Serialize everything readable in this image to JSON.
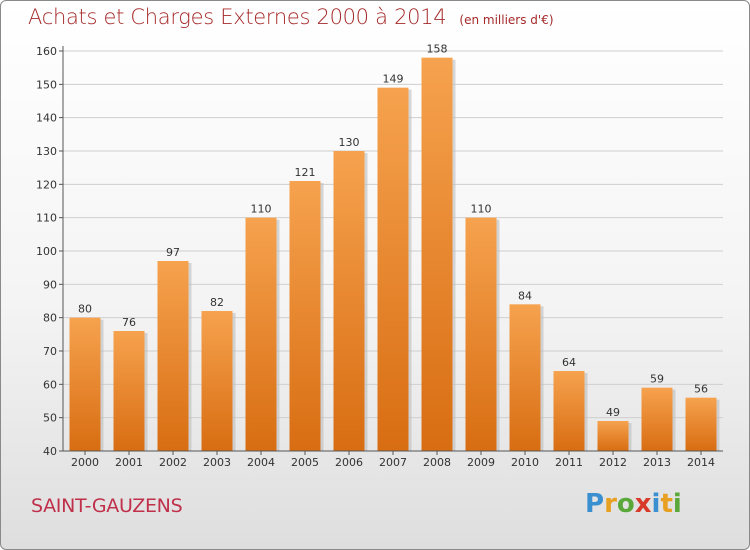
{
  "header": {
    "title": "Achats et Charges Externes 2000 à 2014",
    "subtitle": "(en milliers d'€)"
  },
  "footer": {
    "commune": "SAINT-GAUZENS",
    "logo_letters": [
      {
        "ch": "P",
        "color": "#3a8fd0"
      },
      {
        "ch": "r",
        "color": "#e8a020"
      },
      {
        "ch": "o",
        "color": "#5aa83a"
      },
      {
        "ch": "x",
        "color": "#d83a2a"
      },
      {
        "ch": "i",
        "color": "#3a8fd0"
      },
      {
        "ch": "t",
        "color": "#e8a020"
      },
      {
        "ch": "i",
        "color": "#5aa83a"
      }
    ]
  },
  "chart_data": {
    "type": "bar",
    "categories": [
      "2000",
      "2001",
      "2002",
      "2003",
      "2004",
      "2005",
      "2006",
      "2007",
      "2008",
      "2009",
      "2010",
      "2011",
      "2012",
      "2013",
      "2014"
    ],
    "values": [
      80,
      76,
      97,
      82,
      110,
      121,
      130,
      149,
      158,
      110,
      84,
      64,
      49,
      59,
      56
    ],
    "title": "Achats et Charges Externes 2000 à 2014",
    "subtitle": "(en milliers d'€)",
    "xlabel": "",
    "ylabel": "",
    "ylim": [
      40,
      160
    ],
    "yticks": [
      40,
      50,
      60,
      70,
      80,
      90,
      100,
      110,
      120,
      130,
      140,
      150,
      160
    ],
    "grid": true,
    "bar_color_top": "#f6a24e",
    "bar_color_bottom": "#d86d12"
  }
}
